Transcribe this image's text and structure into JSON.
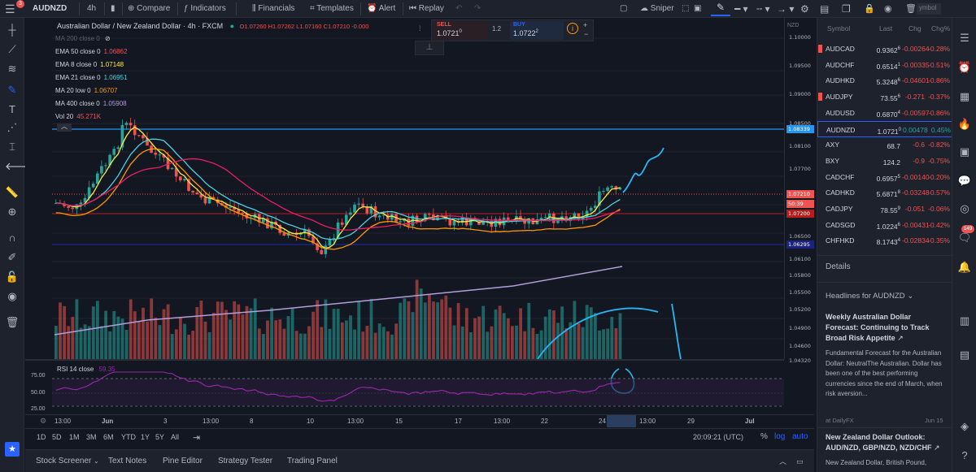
{
  "toolbar": {
    "notif_badge": "3",
    "symbol": "AUDNZD",
    "interval": "4h",
    "compare": "Compare",
    "indicators": "Indicators",
    "financials": "Financials",
    "templates": "Templates",
    "alert": "Alert",
    "replay": "Replay",
    "sniper": "Sniper",
    "symbol_search_placeholder": "ymbol"
  },
  "chart": {
    "title": "Australian Dollar / New Zealand Dollar · 4h · FXCM",
    "ohlc": "O1.07260  H1.07262  L1.07160  C1.07210  -0.000",
    "legend": [
      {
        "label": "MA 200 close 0",
        "value": "",
        "color": "#787b86"
      },
      {
        "label": "EMA 50 close 0",
        "value": "1.06862",
        "color": "#ef5350"
      },
      {
        "label": "EMA 8 close 0",
        "value": "1.07148",
        "color": "#ffeb3b"
      },
      {
        "label": "EMA 21 close 0",
        "value": "1.06951",
        "color": "#4dd0e1"
      },
      {
        "label": "MA 20 low 0",
        "value": "1.06707",
        "color": "#ff9800"
      },
      {
        "label": "MA 400 close 0",
        "value": "1.05908",
        "color": "#b39ddb"
      },
      {
        "label": "Vol 20",
        "value": "45.271K",
        "color": "#ef5350"
      }
    ],
    "exchange_label": "NZD",
    "price_axis": [
      "1.10000",
      "1.09500",
      "1.09000",
      "1.08500",
      "1.08100",
      "1.07700",
      "1.06500",
      "1.06100",
      "1.05800",
      "1.05500",
      "1.05200",
      "1.04900",
      "1.04600",
      "1.04320"
    ],
    "badges": {
      "blue_line": "1.08339",
      "last": "1.07210",
      "countdown": "50:39",
      "red": "1.07200",
      "navy": "1.06295"
    },
    "rsi_label": "RSI 14 close",
    "rsi_value": "59.35",
    "rsi_levels": [
      "75.00",
      "50.00",
      "25.00"
    ],
    "time_axis": [
      "13:00",
      "Jun",
      "3",
      "13:00",
      "8",
      "10",
      "13:00",
      "15",
      "17",
      "13:00",
      "22",
      "24",
      "13:00",
      "29",
      "Jul"
    ]
  },
  "trade": {
    "sell_label": "SELL",
    "sell_price": "1.0721",
    "sell_sup": "0",
    "spread": "1.2",
    "buy_label": "BUY",
    "buy_price": "1.0722",
    "buy_sup": "2"
  },
  "bottom": {
    "ranges": [
      "1D",
      "5D",
      "1M",
      "3M",
      "6M",
      "YTD",
      "1Y",
      "5Y",
      "All"
    ],
    "clock": "20:09:21 (UTC)",
    "pct": "%",
    "log": "log",
    "auto": "auto"
  },
  "tabs": [
    "Stock Screener",
    "Text Notes",
    "Pine Editor",
    "Strategy Tester",
    "Trading Panel"
  ],
  "watchlist": {
    "headers": [
      "Symbol",
      "Last",
      "Chg",
      "Chg%"
    ],
    "rows": [
      {
        "sym": "AUDCAD",
        "last": "0.9362",
        "sup": "6",
        "chg": "-0.00264",
        "pct": "-0.28%",
        "flag": true
      },
      {
        "sym": "AUDCHF",
        "last": "0.6514",
        "sup": "1",
        "chg": "-0.00335",
        "pct": "-0.51%",
        "flag": false
      },
      {
        "sym": "AUDHKD",
        "last": "5.3248",
        "sup": "6",
        "chg": "-0.04601",
        "pct": "-0.86%",
        "flag": false
      },
      {
        "sym": "AUDJPY",
        "last": "73.55",
        "sup": "6",
        "chg": "-0.271",
        "pct": "-0.37%",
        "flag": true
      },
      {
        "sym": "AUDUSD",
        "last": "0.6870",
        "sup": "4",
        "chg": "-0.00597",
        "pct": "-0.86%",
        "flag": false
      },
      {
        "sym": "AUDNZD",
        "last": "1.0721",
        "sup": "0",
        "chg": "0.00478",
        "pct": "0.45%",
        "flag": false,
        "active": true
      },
      {
        "sym": "AXY",
        "last": "68.7",
        "sup": "",
        "chg": "-0.6",
        "pct": "-0.82%",
        "flag": false
      },
      {
        "sym": "BXY",
        "last": "124.2",
        "sup": "",
        "chg": "-0.9",
        "pct": "-0.75%",
        "flag": false
      },
      {
        "sym": "CADCHF",
        "last": "0.6957",
        "sup": "5",
        "chg": "-0.00140",
        "pct": "-0.20%",
        "flag": false
      },
      {
        "sym": "CADHKD",
        "last": "5.6871",
        "sup": "8",
        "chg": "-0.03248",
        "pct": "-0.57%",
        "flag": false
      },
      {
        "sym": "CADJPY",
        "last": "78.55",
        "sup": "9",
        "chg": "-0.051",
        "pct": "-0.06%",
        "flag": false
      },
      {
        "sym": "CADSGD",
        "last": "1.0224",
        "sup": "6",
        "chg": "-0.00431",
        "pct": "-0.42%",
        "flag": false
      },
      {
        "sym": "CHFHKD",
        "last": "8.1743",
        "sup": "4",
        "chg": "-0.02834",
        "pct": "-0.35%",
        "flag": false
      }
    ]
  },
  "details_label": "Details",
  "headlines": {
    "label": "Headlines for AUDNZD",
    "items": [
      {
        "title": "Weekly Australian Dollar Forecast: Continuing to Track Broad Risk Appetite",
        "body": "Fundamental Forecast for the Australian Dollar: NeutralThe Australian. Dollar has been one of the best performing currencies since the end of March, when risk aversion...",
        "source": "at DailyFX",
        "date": "Jun 15"
      },
      {
        "title": "New Zealand Dollar Outlook: AUD/NZD, GBP/NZD, NZD/CHF",
        "body": "New Zealand Dollar, British Pound,",
        "source": "",
        "date": ""
      }
    ]
  },
  "right_badge": "149",
  "colors": {
    "bg": "#131722",
    "panel": "#1e222d",
    "up": "#26a69a",
    "down": "#ef5350",
    "accent": "#2962ff"
  }
}
